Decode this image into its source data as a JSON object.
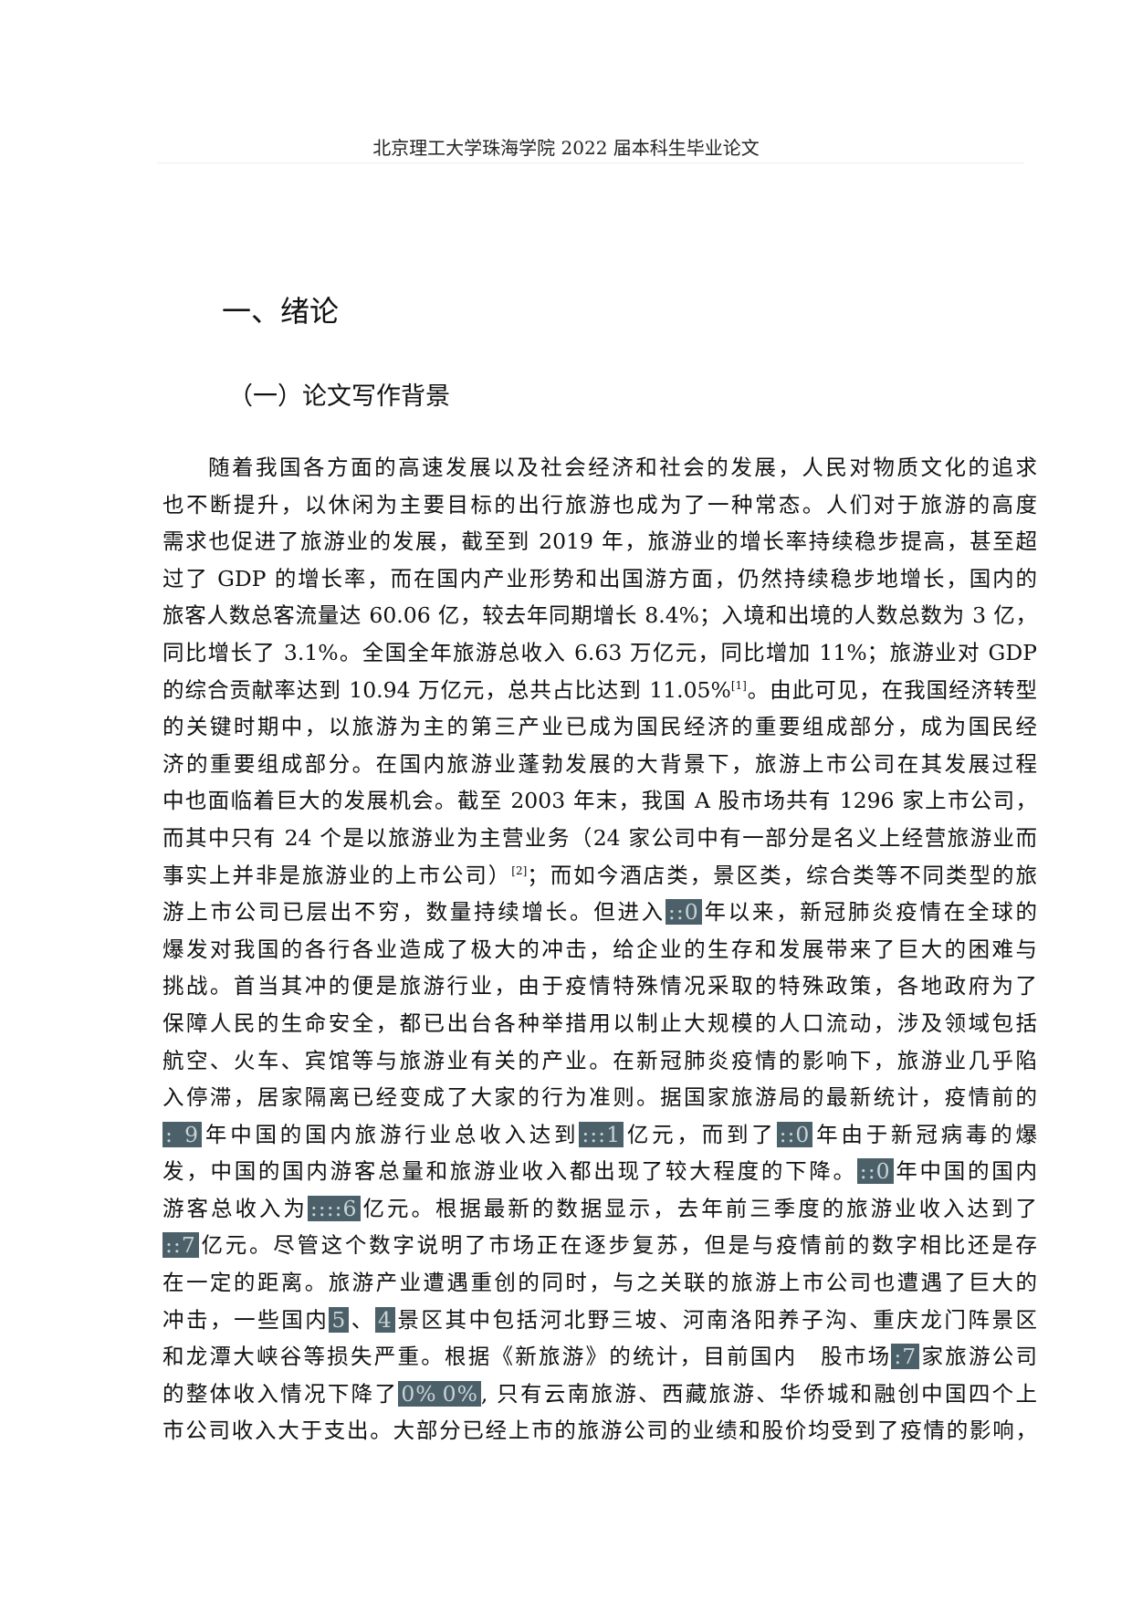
{
  "header": {
    "title": "北京理工大学珠海学院 2022 届本科生毕业论文"
  },
  "heading": "一、绪论",
  "subheading": "（一）论文写作背景",
  "redaction_color": "#4b6068",
  "paragraph": [
    [
      "随着我国各方面的高速发展以及社会经济和社会的发展，人民对物质文化的追求"
    ],
    [
      "也不断提升，以休闲为主要目标的出行旅游也成为了一种常态。人们对于旅游的高度"
    ],
    [
      "需求也促进了旅游业的发展，截至到 2019 年，旅游业的增长率持续稳步提高，甚至超"
    ],
    [
      "过了 GDP 的增长率，而在国内产业形势和出国游方面，仍然持续稳步地增长，国内的"
    ],
    [
      "旅客人数总客流量达 60.06 亿，较去年同期增长 8.4%；入境和出境的人数总数为 3 亿，"
    ],
    [
      "同比增长了 3.1%。全国全年旅游总收入 6.63 万亿元，同比增加 11%；旅游业对 GDP"
    ],
    [
      "的综合贡献率达到 10.94 万亿元，总共占比达到 11.05%",
      {
        "sup": "[1]"
      },
      "。由此可见，在我国经济转型"
    ],
    [
      "的关键时期中，以旅游为主的第三产业已成为国民经济的重要组成部分，成为国民经"
    ],
    [
      "济的重要组成部分。在国内旅游业蓬勃发展的大背景下，旅游上市公司在其发展过程"
    ],
    [
      "中也面临着巨大的发展机会。截至 2003 年末，我国 A 股市场共有 1296 家上市公司，"
    ],
    [
      "而其中只有 24 个是以旅游业为主营业务（24 家公司中有一部分是名义上经营旅游业而"
    ],
    [
      "事实上并非是旅游业的上市公司）",
      {
        "sup": "[2]"
      },
      "；而如今酒店类，景区类，综合类等不同类型的旅"
    ],
    [
      "游上市公司已层出不穷，数量持续增长。但进入",
      {
        "r": "::0"
      },
      "年以来，新冠肺炎疫情在全球的"
    ],
    [
      "爆发对我国的各行各业造成了极大的冲击，给企业的生存和发展带来了巨大的困难与"
    ],
    [
      "挑战。首当其冲的便是旅游行业，由于疫情特殊情况采取的特殊政策，各地政府为了"
    ],
    [
      "保障人民的生命安全，都已出台各种举措用以制止大规模的人口流动，涉及领域包括"
    ],
    [
      "航空、火车、宾馆等与旅游业有关的产业。在新冠肺炎疫情的影响下，旅游业几乎陷"
    ],
    [
      "入停滞，居家隔离已经变成了大家的行为准则。据国家旅游局的最新统计，疫情前的"
    ],
    [
      {
        "r": ": 9"
      },
      "年中国的国内旅游行业总收入达到",
      {
        "r": ":::1"
      },
      "亿元，而到了",
      {
        "r": "::0"
      },
      "年由于新冠病毒的爆"
    ],
    [
      "发，中国的国内游客总量和旅游业收入都出现了较大程度的下降。",
      {
        "r": "::0"
      },
      "年中国的国内"
    ],
    [
      "游客总收入为",
      {
        "r": "::::6"
      },
      "亿元。根据最新的数据显示，去年前三季度的旅游业收入达到了"
    ],
    [
      {
        "r": "::7"
      },
      "亿元。尽管这个数字说明了市场正在逐步复苏，但是与疫情前的数字相比还是存"
    ],
    [
      "在一定的距离。旅游产业遭遇重创的同时，与之关联的旅游上市公司也遭遇了巨大的"
    ],
    [
      "冲击，一些国内",
      {
        "r": "5"
      },
      "、",
      {
        "r": "4"
      },
      "景区其中包括河北野三坡、河南洛阳养子沟、重庆龙门阵景区"
    ],
    [
      "和龙潭大峡谷等损失严重。根据《新旅游》的统计，目前国内　股市场",
      {
        "r": ":7"
      },
      "家旅游公司"
    ],
    [
      "的整体收入情况下降了",
      {
        "r": "0%"
      },
      {
        "r": "0%"
      },
      ", 只有云南旅游、西藏旅游、华侨城和融创中国四个上"
    ],
    [
      "市公司收入大于支出。大部分已经上市的旅游公司的业绩和股价均受到了疫情的影响，"
    ]
  ]
}
